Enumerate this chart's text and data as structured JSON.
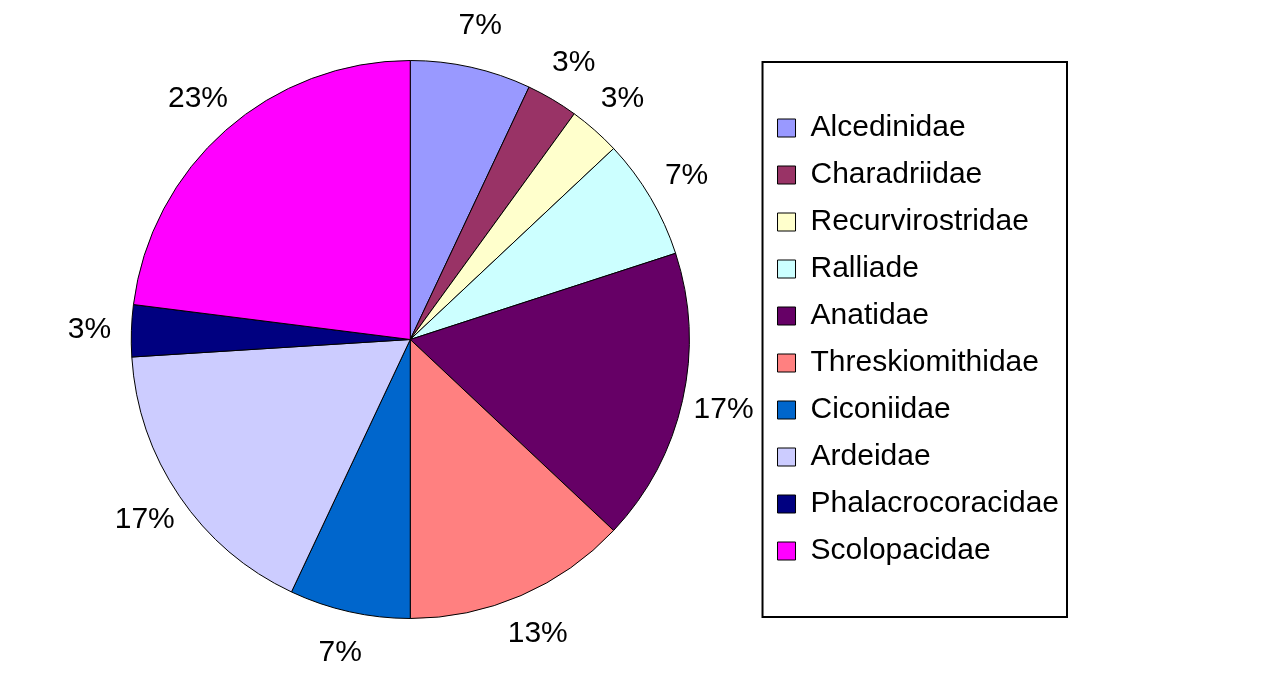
{
  "chart_data": {
    "type": "pie",
    "categories": [
      "Alcedinidae",
      "Charadriidae",
      "Recurvirostridae",
      "Ralliade",
      "Anatidae",
      "Threskiomithidae",
      "Ciconiidae",
      "Ardeidae",
      "Phalacrocoracidae",
      "Scolopacidae"
    ],
    "values": [
      7,
      3,
      3,
      7,
      17,
      13,
      7,
      17,
      3,
      23
    ],
    "value_labels": [
      "7%",
      "3%",
      "3%",
      "7%",
      "17%",
      "13%",
      "7%",
      "17%",
      "3%",
      "23%"
    ],
    "colors": [
      "#9999ff",
      "#993366",
      "#ffffcc",
      "#ccffff",
      "#660066",
      "#ff8080",
      "#0066cc",
      "#ccccff",
      "#000080",
      "#ff00ff"
    ],
    "legend": "right"
  }
}
